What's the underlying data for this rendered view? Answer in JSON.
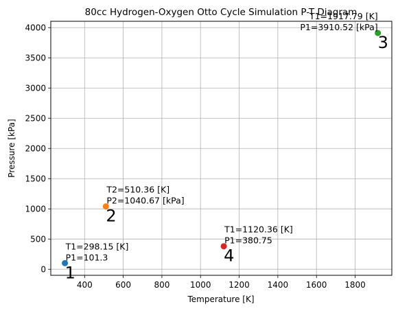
{
  "chart_data": {
    "type": "scatter",
    "title": "80cc Hydrogen-Oxygen Otto Cycle Simulation P-T Diagram",
    "xlabel": "Temperature [K]",
    "ylabel": "Pressure [kPa]",
    "xlim": [
      225,
      1990
    ],
    "ylim": [
      -100,
      4105
    ],
    "grid": true,
    "xticks": [
      400,
      600,
      800,
      1000,
      1200,
      1400,
      1600,
      1800
    ],
    "yticks": [
      0,
      500,
      1000,
      1500,
      2000,
      2500,
      3000,
      3500,
      4000
    ],
    "points": [
      {
        "label": "1",
        "x": 298.15,
        "y": 101.3,
        "color": "#1f77b4",
        "annotation": [
          "T1=298.15 [K]",
          "P1=101.3"
        ],
        "annot_align": "start"
      },
      {
        "label": "2",
        "x": 510.36,
        "y": 1040.67,
        "color": "#ff7f0e",
        "annotation": [
          "T2=510.36 [K]",
          "P2=1040.67 [kPa]"
        ],
        "annot_align": "start"
      },
      {
        "label": "3",
        "x": 1917.79,
        "y": 3910.52,
        "color": "#2ca02c",
        "annotation": [
          "T1=1917.79 [K]",
          "P1=3910.52 [kPa]"
        ],
        "annot_align": "end"
      },
      {
        "label": "4",
        "x": 1120.36,
        "y": 380.75,
        "color": "#d62728",
        "annotation": [
          "T1=1120.36 [K]",
          "P1=380.75"
        ],
        "annot_align": "start"
      }
    ]
  }
}
